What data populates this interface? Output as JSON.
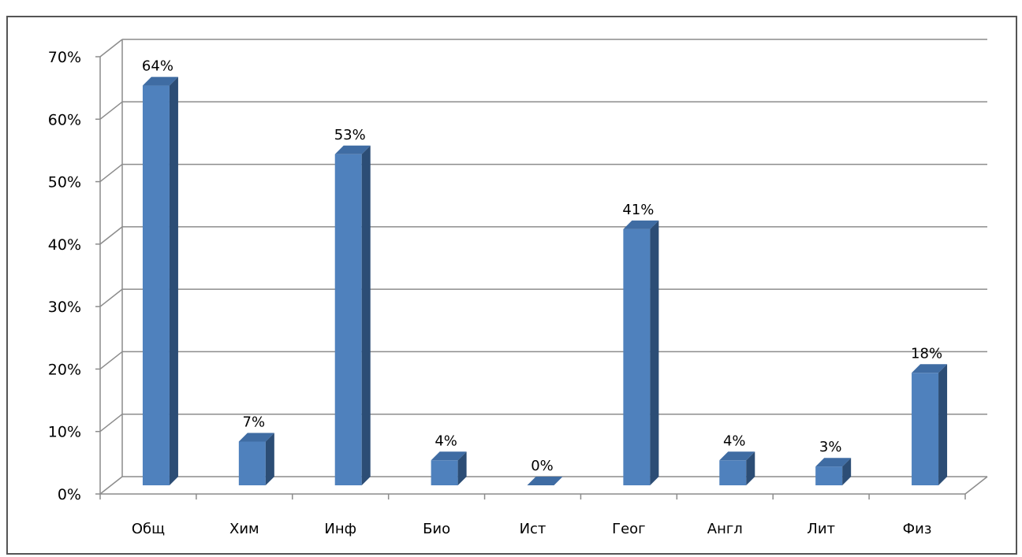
{
  "chart_data": {
    "type": "bar",
    "title": "",
    "categories": [
      "Общ",
      "Хим",
      "Инф",
      "Био",
      "Ист",
      "Геог",
      "Англ",
      "Лит",
      "Физ"
    ],
    "values": [
      0.64,
      0.07,
      0.53,
      0.04,
      0.0,
      0.41,
      0.04,
      0.03,
      0.18
    ],
    "data_labels": [
      "64%",
      "7%",
      "53%",
      "4%",
      "0%",
      "41%",
      "4%",
      "3%",
      "18%"
    ],
    "y_ticks": [
      "0%",
      "10%",
      "20%",
      "30%",
      "40%",
      "50%",
      "60%",
      "70%"
    ],
    "ylim": [
      0,
      0.7
    ],
    "grid": true,
    "legend": "none",
    "style": "3d-clustered-column",
    "colors": {
      "bar_front": "#4f81bd",
      "bar_side": "#2c4d75",
      "bar_top": "#3f6ca3",
      "grid": "#8c8c8c"
    }
  }
}
